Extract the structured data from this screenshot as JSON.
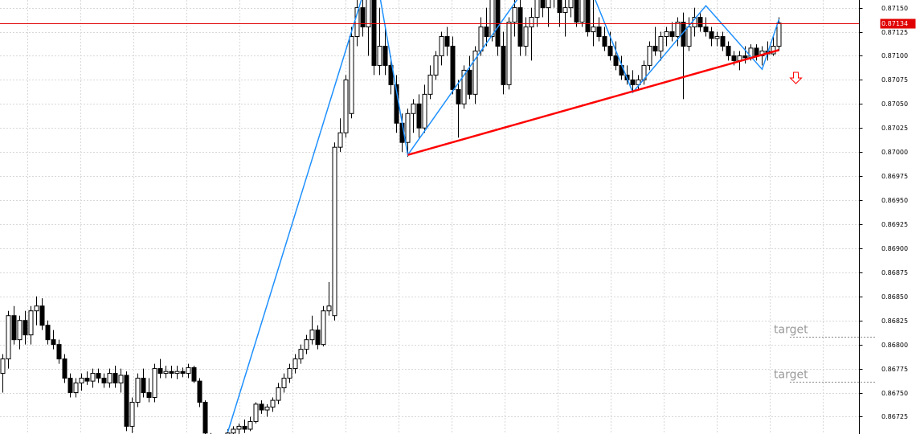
{
  "chart_data": {
    "type": "candlestick",
    "open": [
      0.8677,
      0.86785,
      0.8683,
      0.86805,
      0.86825,
      0.8681,
      0.86835,
      0.8684,
      0.8682,
      0.86805,
      0.868,
      0.86785,
      0.86765,
      0.8675,
      0.8676,
      0.86765,
      0.86762,
      0.8677,
      0.86765,
      0.8676,
      0.8677,
      0.8676,
      0.86768,
      0.86715,
      0.8674,
      0.86765,
      0.8675,
      0.86745,
      0.86775,
      0.8677,
      0.86772,
      0.8677,
      0.86772,
      0.8677,
      0.86776,
      0.86762,
      0.8674,
      0.86702,
      0.86695,
      0.8669,
      0.867,
      0.86708,
      0.86712,
      0.86715,
      0.86712,
      0.8672,
      0.86738,
      0.86732,
      0.86735,
      0.86742,
      0.86755,
      0.86765,
      0.86775,
      0.86785,
      0.86795,
      0.86805,
      0.86815,
      0.868,
      0.86835,
      0.8683,
      0.87005,
      0.8702,
      0.8704,
      0.8712,
      0.8715,
      0.8713,
      0.8716,
      0.8709,
      0.8711,
      0.8709,
      0.8707,
      0.8703,
      0.8701,
      0.8704,
      0.8705,
      0.87025,
      0.8706,
      0.8708,
      0.871,
      0.8712,
      0.8711,
      0.87065,
      0.8705,
      0.87085,
      0.8706,
      0.87105,
      0.8713,
      0.8712,
      0.8716,
      0.8711,
      0.8707,
      0.87135,
      0.8715,
      0.8711,
      0.8713,
      0.8714,
      0.8716,
      0.8715,
      0.87165,
      0.8716,
      0.87145,
      0.8715,
      0.8716,
      0.87135,
      0.8716,
      0.87125,
      0.8713,
      0.8712,
      0.8711,
      0.871,
      0.8709,
      0.8708,
      0.87075,
      0.8707,
      0.87075,
      0.8709,
      0.8711,
      0.87105,
      0.8712,
      0.87125,
      0.8712,
      0.87135,
      0.8711,
      0.8713,
      0.8714,
      0.8713,
      0.87125,
      0.87118,
      0.8712,
      0.8711,
      0.871,
      0.87095,
      0.871,
      0.87098,
      0.87108,
      0.871,
      0.87105,
      0.87102,
      0.8711
    ],
    "high": [
      0.8679,
      0.86835,
      0.8684,
      0.8683,
      0.86835,
      0.8684,
      0.8685,
      0.86848,
      0.86825,
      0.86815,
      0.86805,
      0.8679,
      0.8677,
      0.86765,
      0.8677,
      0.86772,
      0.86775,
      0.86775,
      0.8677,
      0.86775,
      0.86778,
      0.86775,
      0.86772,
      0.86745,
      0.8677,
      0.86775,
      0.86765,
      0.8678,
      0.86785,
      0.86778,
      0.86778,
      0.86778,
      0.86776,
      0.8678,
      0.86778,
      0.86765,
      0.86742,
      0.86708,
      0.867,
      0.86705,
      0.86712,
      0.86715,
      0.86718,
      0.86722,
      0.86725,
      0.8674,
      0.86742,
      0.86738,
      0.86745,
      0.8676,
      0.8677,
      0.8678,
      0.8679,
      0.868,
      0.8681,
      0.8683,
      0.8682,
      0.8684,
      0.86865,
      0.8701,
      0.87035,
      0.8708,
      0.8713,
      0.8716,
      0.8717,
      0.8717,
      0.8717,
      0.8715,
      0.8713,
      0.871,
      0.8708,
      0.8704,
      0.87045,
      0.87055,
      0.8706,
      0.8707,
      0.8709,
      0.87105,
      0.87125,
      0.8713,
      0.8712,
      0.87075,
      0.8709,
      0.871,
      0.8711,
      0.8714,
      0.8715,
      0.8717,
      0.8717,
      0.87125,
      0.8714,
      0.8716,
      0.8716,
      0.8714,
      0.8715,
      0.87165,
      0.8717,
      0.8717,
      0.8717,
      0.8717,
      0.87165,
      0.8717,
      0.8717,
      0.8717,
      0.87165,
      0.8717,
      0.8714,
      0.8713,
      0.87125,
      0.87115,
      0.871,
      0.8709,
      0.87085,
      0.8708,
      0.87095,
      0.87115,
      0.8713,
      0.87125,
      0.8713,
      0.87135,
      0.8714,
      0.87145,
      0.8714,
      0.8715,
      0.87145,
      0.8714,
      0.8713,
      0.87125,
      0.87125,
      0.87115,
      0.87105,
      0.87105,
      0.8711,
      0.87112,
      0.87112,
      0.8711,
      0.87115,
      0.8712,
      0.8714
    ],
    "low": [
      0.8675,
      0.86775,
      0.868,
      0.86795,
      0.868,
      0.868,
      0.8682,
      0.86815,
      0.868,
      0.86795,
      0.8678,
      0.8676,
      0.86745,
      0.86745,
      0.86752,
      0.86758,
      0.86755,
      0.8676,
      0.86755,
      0.86755,
      0.86755,
      0.8675,
      0.8671,
      0.86708,
      0.86735,
      0.86745,
      0.8674,
      0.8674,
      0.86765,
      0.86765,
      0.86765,
      0.86764,
      0.86766,
      0.86765,
      0.8676,
      0.86735,
      0.86705,
      0.8669,
      0.86685,
      0.86688,
      0.86695,
      0.867,
      0.86705,
      0.86708,
      0.8671,
      0.86718,
      0.86728,
      0.86725,
      0.8673,
      0.86738,
      0.8675,
      0.8676,
      0.8677,
      0.8678,
      0.8679,
      0.868,
      0.86795,
      0.86798,
      0.8683,
      0.86825,
      0.87,
      0.87015,
      0.87035,
      0.8711,
      0.8712,
      0.871,
      0.8708,
      0.8708,
      0.8708,
      0.8706,
      0.8702,
      0.87,
      0.86995,
      0.8702,
      0.87015,
      0.8702,
      0.87055,
      0.87075,
      0.8709,
      0.871,
      0.8706,
      0.87015,
      0.87045,
      0.87055,
      0.8705,
      0.871,
      0.8711,
      0.87115,
      0.871,
      0.8706,
      0.87065,
      0.8712,
      0.871,
      0.871,
      0.87095,
      0.8713,
      0.8714,
      0.8713,
      0.8715,
      0.8713,
      0.8712,
      0.8714,
      0.8713,
      0.8713,
      0.8712,
      0.8711,
      0.87115,
      0.87105,
      0.87095,
      0.87085,
      0.87075,
      0.8707,
      0.87062,
      0.87065,
      0.8707,
      0.87085,
      0.871,
      0.87095,
      0.8711,
      0.87115,
      0.8711,
      0.87055,
      0.87105,
      0.8712,
      0.87125,
      0.8712,
      0.8711,
      0.8711,
      0.87105,
      0.87095,
      0.8709,
      0.87085,
      0.87092,
      0.87095,
      0.87095,
      0.8709,
      0.87095,
      0.871,
      0.87105
    ],
    "close": [
      0.86785,
      0.8683,
      0.86805,
      0.86825,
      0.8681,
      0.86835,
      0.8684,
      0.8682,
      0.86805,
      0.868,
      0.86785,
      0.86765,
      0.8675,
      0.8676,
      0.86765,
      0.86762,
      0.8677,
      0.86765,
      0.8676,
      0.8677,
      0.8676,
      0.86768,
      0.86715,
      0.8674,
      0.86765,
      0.8675,
      0.86745,
      0.86775,
      0.8677,
      0.86772,
      0.8677,
      0.86772,
      0.8677,
      0.86776,
      0.86762,
      0.8674,
      0.86708,
      0.86695,
      0.8669,
      0.867,
      0.86708,
      0.86712,
      0.86715,
      0.86712,
      0.8672,
      0.86738,
      0.86732,
      0.86735,
      0.86742,
      0.86755,
      0.86765,
      0.86775,
      0.86785,
      0.86795,
      0.86805,
      0.86815,
      0.868,
      0.86835,
      0.8684,
      0.87005,
      0.8702,
      0.87075,
      0.8712,
      0.8715,
      0.8713,
      0.8716,
      0.8709,
      0.8711,
      0.8709,
      0.8707,
      0.8703,
      0.8701,
      0.8704,
      0.8705,
      0.87025,
      0.8706,
      0.8708,
      0.871,
      0.8712,
      0.8711,
      0.87065,
      0.8705,
      0.87085,
      0.8706,
      0.87105,
      0.8713,
      0.8712,
      0.8716,
      0.8711,
      0.8707,
      0.87135,
      0.8715,
      0.8711,
      0.8713,
      0.8714,
      0.8716,
      0.8715,
      0.87165,
      0.8716,
      0.87145,
      0.8715,
      0.8716,
      0.87135,
      0.8716,
      0.87125,
      0.8713,
      0.8712,
      0.8711,
      0.871,
      0.8709,
      0.8708,
      0.87075,
      0.8707,
      0.87075,
      0.8709,
      0.8711,
      0.87105,
      0.8712,
      0.87125,
      0.8712,
      0.87135,
      0.8711,
      0.8713,
      0.8714,
      0.8713,
      0.87125,
      0.87118,
      0.8712,
      0.8711,
      0.871,
      0.87095,
      0.871,
      0.87098,
      0.87108,
      0.871,
      0.87105,
      0.87102,
      0.8711,
      0.87134
    ],
    "bull_color": "#ffffff",
    "bear_color": "#000000",
    "ylim": [
      0.86707,
      0.87158
    ],
    "yticks": [
      {
        "value": 0.8715,
        "label": "0.87150"
      },
      {
        "value": 0.87125,
        "label": "0.87125"
      },
      {
        "value": 0.871,
        "label": "0.87100"
      },
      {
        "value": 0.87075,
        "label": "0.87075"
      },
      {
        "value": 0.8705,
        "label": "0.87050"
      },
      {
        "value": 0.87025,
        "label": "0.87025"
      },
      {
        "value": 0.87,
        "label": "0.87000"
      },
      {
        "value": 0.86975,
        "label": "0.86975"
      },
      {
        "value": 0.8695,
        "label": "0.86950"
      },
      {
        "value": 0.86925,
        "label": "0.86925"
      },
      {
        "value": 0.869,
        "label": "0.86900"
      },
      {
        "value": 0.86875,
        "label": "0.86875"
      },
      {
        "value": 0.8685,
        "label": "0.86850"
      },
      {
        "value": 0.86825,
        "label": "0.86825"
      },
      {
        "value": 0.868,
        "label": "0.86800"
      },
      {
        "value": 0.86775,
        "label": "0.86775"
      },
      {
        "value": 0.8675,
        "label": "0.86750"
      },
      {
        "value": 0.86725,
        "label": "0.86725"
      }
    ],
    "grid": true,
    "current_price": 0.87134,
    "current_price_color": "#e00000",
    "zigzag": {
      "color": "#1e90ff",
      "x": [
        40,
        64,
        67,
        72,
        92,
        101,
        105,
        112,
        125,
        135,
        138
      ],
      "values": [
        0.86709,
        0.87163,
        0.87163,
        0.86997,
        0.87163,
        0.87163,
        0.87163,
        0.87062,
        0.87152,
        0.87086,
        0.87138
      ]
    },
    "trendline": {
      "color": "#ff0000",
      "x": [
        72,
        138
      ],
      "values": [
        0.86997,
        0.87106
      ]
    },
    "targets": [
      {
        "label": "target",
        "value": 0.86808
      },
      {
        "label": "target",
        "value": 0.86761
      }
    ],
    "arrow": {
      "x": 141,
      "value": 0.87077,
      "color": "#ff0000"
    }
  }
}
